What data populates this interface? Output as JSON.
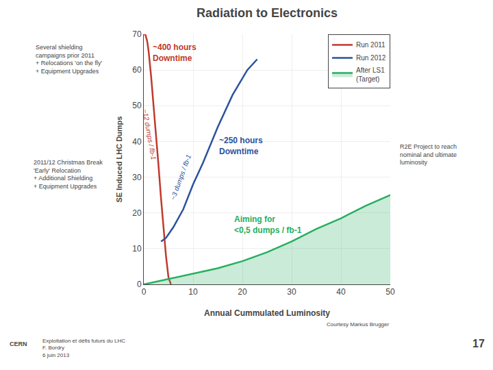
{
  "chart_data": {
    "type": "line",
    "title": "Radiation to Electronics",
    "x_label": "Annual Cummulated Luminosity",
    "y_label": "SE Induced LHC Dumps",
    "xlim": [
      0,
      50
    ],
    "ylim": [
      0,
      70
    ],
    "xticks": [
      0,
      10,
      20,
      30,
      40,
      50
    ],
    "yticks": [
      0,
      10,
      20,
      30,
      40,
      50,
      60,
      70
    ],
    "grid": true,
    "legend": "upper right",
    "series": [
      {
        "name": "Run 2011",
        "type": "line",
        "color": "#c0392b",
        "x": [
          0.0,
          0.3,
          0.7,
          1.0,
          1.5,
          2.0,
          2.5,
          3.0,
          3.5,
          4.0,
          4.5,
          5.0,
          5.5
        ],
        "values": [
          70,
          70,
          68,
          65,
          58,
          50,
          42,
          33,
          24,
          16,
          8,
          2,
          0
        ]
      },
      {
        "name": "Run 2012",
        "type": "line",
        "color": "#2c529e",
        "x": [
          3.5,
          4.0,
          4.5,
          5.0,
          6.0,
          8.0,
          10.0,
          12.0,
          15.0,
          18.0,
          21.0,
          23.0
        ],
        "values": [
          12,
          12.5,
          13,
          14,
          16,
          21,
          28,
          34,
          44,
          53,
          60,
          63
        ]
      },
      {
        "name": "After LS1\n(Target)",
        "type": "area",
        "color": "#27ae60",
        "x": [
          0,
          5,
          10,
          15,
          20,
          25,
          30,
          35,
          40,
          45,
          50
        ],
        "values": [
          0,
          1.5,
          3.0,
          4.5,
          6.5,
          9.0,
          12.0,
          15.5,
          18.5,
          22.0,
          25.0
        ]
      }
    ],
    "annotations": [
      {
        "text": "~400 hours\nDowntime",
        "x": 1.5,
        "y": 68,
        "color": "#c0392b"
      },
      {
        "text": "~250 hours\nDowntime",
        "x": 15,
        "y": 42,
        "color": "#2c529e"
      },
      {
        "text": "Aiming for\n<0,5 dumps / fb-1",
        "x": 18,
        "y": 20,
        "color": "#27ae60"
      },
      {
        "text": "~12 dumps / fb-1",
        "x": 1.2,
        "y": 42,
        "color": "#c0392b"
      },
      {
        "text": "~3 dumps / fb-1",
        "x": 7.5,
        "y": 30,
        "color": "#2c529e"
      }
    ],
    "notes": [
      "Several shielding\ncampaigns prior 2011\n+ Relocations 'on the fly'\n+ Equipment Upgrades",
      "2011/12 Christmas Break\n'Early' Relocation\n+ Additional Shielding\n+ Equipment Upgrades",
      "R2E Project to reach\nnominal and ultimate\nluminosity",
      "Courtesy Markus Brugger",
      "CERN",
      "Exploitation et défis futurs du LHC\nF. Bordry\n6 juin 2013",
      "17"
    ]
  }
}
